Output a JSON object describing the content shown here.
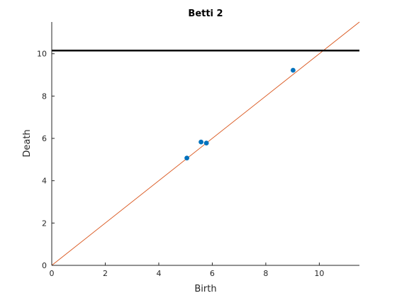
{
  "chart_data": {
    "type": "scatter",
    "title": "Betti 2",
    "xlabel": "Birth",
    "ylabel": "Death",
    "xlim": [
      0,
      11.5
    ],
    "ylim": [
      0,
      11.5
    ],
    "xticks": [
      0,
      2,
      4,
      6,
      8,
      10
    ],
    "yticks": [
      0,
      2,
      4,
      6,
      8,
      10
    ],
    "grid": false,
    "colors": {
      "points": "#0072bd",
      "diagonal": "#d95319",
      "infinity_line": "#000000"
    },
    "series": [
      {
        "points": [
          {
            "x": 5.05,
            "y": 5.07
          },
          {
            "x": 5.58,
            "y": 5.83
          },
          {
            "x": 5.78,
            "y": 5.78
          },
          {
            "x": 9.02,
            "y": 9.22
          }
        ]
      }
    ],
    "reference_lines": [
      {
        "kind": "diagonal",
        "from": [
          0,
          0
        ],
        "to": [
          11.5,
          11.5
        ]
      },
      {
        "kind": "horizontal",
        "y": 10.15
      }
    ]
  }
}
